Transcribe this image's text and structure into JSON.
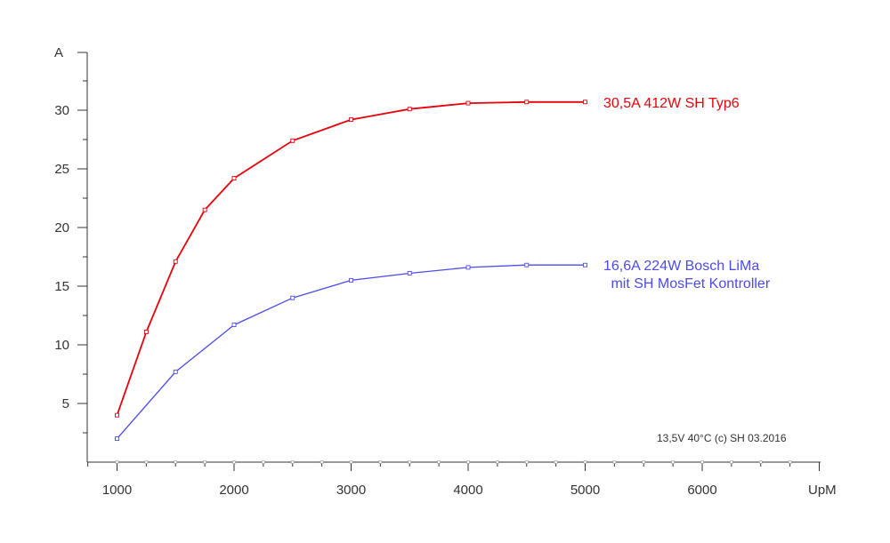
{
  "chart_data": {
    "type": "line",
    "xlabel": "UpM",
    "ylabel": "A",
    "xlim": [
      750,
      7000
    ],
    "ylim": [
      0,
      35
    ],
    "x_ticks": [
      1000,
      2000,
      3000,
      4000,
      5000,
      6000
    ],
    "x_tick_labels": [
      "1000",
      "2000",
      "3000",
      "4000",
      "5000",
      "6000"
    ],
    "y_ticks": [
      5,
      10,
      15,
      20,
      25,
      30
    ],
    "y_tick_labels": [
      "5",
      "10",
      "15",
      "20",
      "25",
      "30"
    ],
    "grid": false,
    "series": [
      {
        "name": "30,5A  412W  SH Typ6",
        "color": "#e8000b",
        "x": [
          1000,
          1250,
          1500,
          1750,
          2000,
          2500,
          3000,
          3500,
          4000,
          4500,
          5000
        ],
        "y": [
          4.0,
          11.1,
          17.1,
          21.5,
          24.2,
          27.4,
          29.2,
          30.1,
          30.6,
          30.7,
          30.7
        ]
      },
      {
        "name": "16,6A  224W  Bosch LiMa\n mit SH MosFet Kontroller",
        "color": "#4b4bef",
        "x": [
          1000,
          1500,
          2000,
          2500,
          3000,
          3500,
          4000,
          4500,
          5000
        ],
        "y": [
          2.0,
          7.7,
          11.7,
          14.0,
          15.5,
          16.1,
          16.6,
          16.8,
          16.8
        ]
      }
    ],
    "annotation": "13,5V    40°C    (c) SH 03.2016"
  }
}
